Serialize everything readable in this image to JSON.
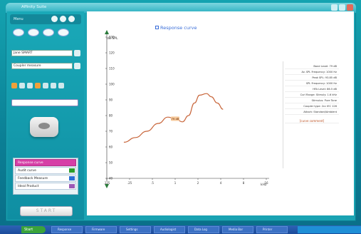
{
  "window": {
    "title": "Affinity Suite"
  },
  "left_panel": {
    "menu_label": "Menu",
    "client_select": "Jane SMART",
    "ear_select": "Coupler measure",
    "measurements": [
      {
        "label": "Response curve",
        "active": true,
        "swatch": "#d63fa6"
      },
      {
        "label": "Audit curve",
        "active": false,
        "swatch": "#2a9d2a"
      },
      {
        "label": "Feedback Measure",
        "active": false,
        "swatch": "#2a6fd6"
      },
      {
        "label": "Ideal Product",
        "active": false,
        "swatch": "#9b59b6"
      }
    ],
    "start_button": "START"
  },
  "chart_data": {
    "type": "line",
    "title": "Response curve",
    "ylabel": "dB SPL",
    "xlabel": "kHz",
    "y_ticks": [
      "130",
      "120",
      "110",
      "100",
      "90",
      "80",
      "70",
      "60",
      "50",
      "40"
    ],
    "x_ticks": [
      ".125",
      ".25",
      ".5",
      "1",
      "2",
      "4",
      "8",
      "16"
    ],
    "ylim": [
      40,
      130
    ],
    "xlim": [
      0.125,
      16
    ],
    "x_scale": "log",
    "annotation": "79 dB",
    "series": [
      {
        "color": "#c8653a",
        "x": [
          0.21,
          0.3,
          0.42,
          0.6,
          0.8,
          1.0,
          1.25,
          1.5,
          1.8,
          2.1,
          2.6,
          3.0,
          3.6,
          4.3
        ],
        "y": [
          63,
          66,
          70,
          75,
          79,
          78,
          76,
          80,
          88,
          93,
          94,
          92,
          88,
          84
        ]
      }
    ]
  },
  "info_panel": {
    "rows": [
      "Band Level: 79 dB",
      "Av. SPL Frequency: 1000 Hz",
      "Peak SPL: 93.85 dB",
      "SPL Frequency: 1000 Hz",
      "HFA Level: 86.5 dB",
      "Curl Range: Stimuly: 1.6 kHz",
      "Stimulus: Pure Tone",
      "Coupler type: 2cc IEC 126",
      "Attach: Standard/Ambient"
    ],
    "link": "[curve comment]"
  },
  "taskbar": {
    "start": "Start",
    "items": [
      "Response",
      "Firmware",
      "Settings",
      "Audiologist",
      "Data Log",
      "Media Bar",
      "Printer"
    ]
  }
}
